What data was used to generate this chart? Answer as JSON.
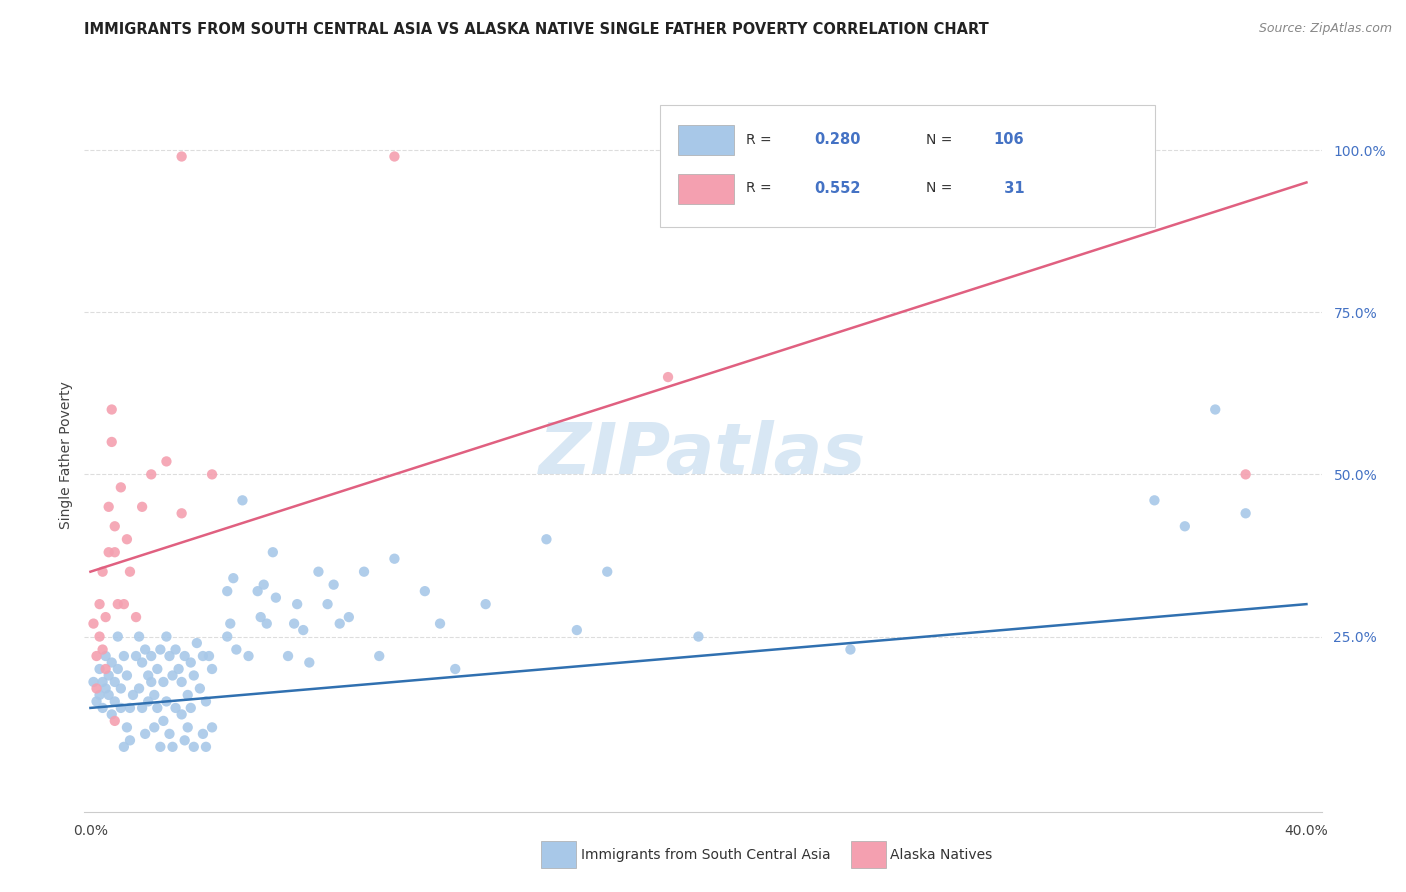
{
  "title": "IMMIGRANTS FROM SOUTH CENTRAL ASIA VS ALASKA NATIVE SINGLE FATHER POVERTY CORRELATION CHART",
  "source": "Source: ZipAtlas.com",
  "ylabel": "Single Father Poverty",
  "ytick_labels": [
    "100.0%",
    "75.0%",
    "50.0%",
    "25.0%"
  ],
  "ytick_values": [
    1.0,
    0.75,
    0.5,
    0.25
  ],
  "xtick_labels": [
    "0.0%",
    "",
    "",
    "",
    "40.0%"
  ],
  "xtick_values": [
    0.0,
    0.1,
    0.2,
    0.3,
    0.4
  ],
  "xlim": [
    -0.002,
    0.405
  ],
  "ylim": [
    -0.02,
    1.08
  ],
  "legend_blue_R": "0.280",
  "legend_blue_N": "106",
  "legend_pink_R": "0.552",
  "legend_pink_N": "  31",
  "blue_color": "#a8c8e8",
  "pink_color": "#f4a0b0",
  "line_blue_color": "#3070b0",
  "line_pink_color": "#e06080",
  "legend_text_color": "#4472c4",
  "watermark": "ZIPatlas",
  "blue_scatter": [
    [
      0.001,
      0.18
    ],
    [
      0.002,
      0.15
    ],
    [
      0.003,
      0.2
    ],
    [
      0.003,
      0.16
    ],
    [
      0.004,
      0.18
    ],
    [
      0.004,
      0.14
    ],
    [
      0.005,
      0.22
    ],
    [
      0.005,
      0.17
    ],
    [
      0.006,
      0.19
    ],
    [
      0.006,
      0.16
    ],
    [
      0.007,
      0.21
    ],
    [
      0.007,
      0.13
    ],
    [
      0.008,
      0.18
    ],
    [
      0.008,
      0.15
    ],
    [
      0.009,
      0.25
    ],
    [
      0.009,
      0.2
    ],
    [
      0.01,
      0.17
    ],
    [
      0.01,
      0.14
    ],
    [
      0.011,
      0.22
    ],
    [
      0.011,
      0.08
    ],
    [
      0.012,
      0.19
    ],
    [
      0.012,
      0.11
    ],
    [
      0.013,
      0.14
    ],
    [
      0.013,
      0.09
    ],
    [
      0.014,
      0.16
    ],
    [
      0.015,
      0.22
    ],
    [
      0.016,
      0.25
    ],
    [
      0.016,
      0.17
    ],
    [
      0.017,
      0.21
    ],
    [
      0.017,
      0.14
    ],
    [
      0.018,
      0.23
    ],
    [
      0.018,
      0.1
    ],
    [
      0.019,
      0.19
    ],
    [
      0.019,
      0.15
    ],
    [
      0.02,
      0.22
    ],
    [
      0.02,
      0.18
    ],
    [
      0.021,
      0.16
    ],
    [
      0.021,
      0.11
    ],
    [
      0.022,
      0.2
    ],
    [
      0.022,
      0.14
    ],
    [
      0.023,
      0.23
    ],
    [
      0.023,
      0.08
    ],
    [
      0.024,
      0.18
    ],
    [
      0.024,
      0.12
    ],
    [
      0.025,
      0.25
    ],
    [
      0.025,
      0.15
    ],
    [
      0.026,
      0.22
    ],
    [
      0.026,
      0.1
    ],
    [
      0.027,
      0.19
    ],
    [
      0.027,
      0.08
    ],
    [
      0.028,
      0.23
    ],
    [
      0.028,
      0.14
    ],
    [
      0.029,
      0.2
    ],
    [
      0.03,
      0.18
    ],
    [
      0.03,
      0.13
    ],
    [
      0.031,
      0.22
    ],
    [
      0.031,
      0.09
    ],
    [
      0.032,
      0.16
    ],
    [
      0.032,
      0.11
    ],
    [
      0.033,
      0.21
    ],
    [
      0.033,
      0.14
    ],
    [
      0.034,
      0.19
    ],
    [
      0.034,
      0.08
    ],
    [
      0.035,
      0.24
    ],
    [
      0.036,
      0.17
    ],
    [
      0.037,
      0.22
    ],
    [
      0.037,
      0.1
    ],
    [
      0.038,
      0.15
    ],
    [
      0.038,
      0.08
    ],
    [
      0.039,
      0.22
    ],
    [
      0.04,
      0.2
    ],
    [
      0.04,
      0.11
    ],
    [
      0.045,
      0.32
    ],
    [
      0.045,
      0.25
    ],
    [
      0.046,
      0.27
    ],
    [
      0.047,
      0.34
    ],
    [
      0.048,
      0.23
    ],
    [
      0.05,
      0.46
    ],
    [
      0.052,
      0.22
    ],
    [
      0.055,
      0.32
    ],
    [
      0.056,
      0.28
    ],
    [
      0.057,
      0.33
    ],
    [
      0.058,
      0.27
    ],
    [
      0.06,
      0.38
    ],
    [
      0.061,
      0.31
    ],
    [
      0.065,
      0.22
    ],
    [
      0.067,
      0.27
    ],
    [
      0.068,
      0.3
    ],
    [
      0.07,
      0.26
    ],
    [
      0.072,
      0.21
    ],
    [
      0.075,
      0.35
    ],
    [
      0.078,
      0.3
    ],
    [
      0.08,
      0.33
    ],
    [
      0.082,
      0.27
    ],
    [
      0.085,
      0.28
    ],
    [
      0.09,
      0.35
    ],
    [
      0.095,
      0.22
    ],
    [
      0.1,
      0.37
    ],
    [
      0.11,
      0.32
    ],
    [
      0.115,
      0.27
    ],
    [
      0.12,
      0.2
    ],
    [
      0.13,
      0.3
    ],
    [
      0.15,
      0.4
    ],
    [
      0.16,
      0.26
    ],
    [
      0.17,
      0.35
    ],
    [
      0.2,
      0.25
    ],
    [
      0.25,
      0.23
    ],
    [
      0.35,
      0.46
    ],
    [
      0.36,
      0.42
    ],
    [
      0.37,
      0.6
    ],
    [
      0.38,
      0.44
    ]
  ],
  "pink_scatter": [
    [
      0.001,
      0.27
    ],
    [
      0.002,
      0.22
    ],
    [
      0.002,
      0.17
    ],
    [
      0.003,
      0.25
    ],
    [
      0.003,
      0.3
    ],
    [
      0.004,
      0.35
    ],
    [
      0.004,
      0.23
    ],
    [
      0.005,
      0.28
    ],
    [
      0.005,
      0.2
    ],
    [
      0.006,
      0.45
    ],
    [
      0.006,
      0.38
    ],
    [
      0.007,
      0.6
    ],
    [
      0.007,
      0.55
    ],
    [
      0.008,
      0.42
    ],
    [
      0.008,
      0.38
    ],
    [
      0.009,
      0.3
    ],
    [
      0.01,
      0.48
    ],
    [
      0.011,
      0.3
    ],
    [
      0.012,
      0.4
    ],
    [
      0.013,
      0.35
    ],
    [
      0.015,
      0.28
    ],
    [
      0.017,
      0.45
    ],
    [
      0.02,
      0.5
    ],
    [
      0.025,
      0.52
    ],
    [
      0.03,
      0.44
    ],
    [
      0.04,
      0.5
    ],
    [
      0.1,
      0.99
    ],
    [
      0.03,
      0.99
    ],
    [
      0.19,
      0.65
    ],
    [
      0.38,
      0.5
    ],
    [
      0.008,
      0.12
    ]
  ],
  "blue_line_x": [
    0.0,
    0.4
  ],
  "blue_line_y": [
    0.14,
    0.3
  ],
  "pink_line_x": [
    0.0,
    0.4
  ],
  "pink_line_y": [
    0.35,
    0.95
  ],
  "grid_color": "#dddddd",
  "background_color": "#ffffff"
}
